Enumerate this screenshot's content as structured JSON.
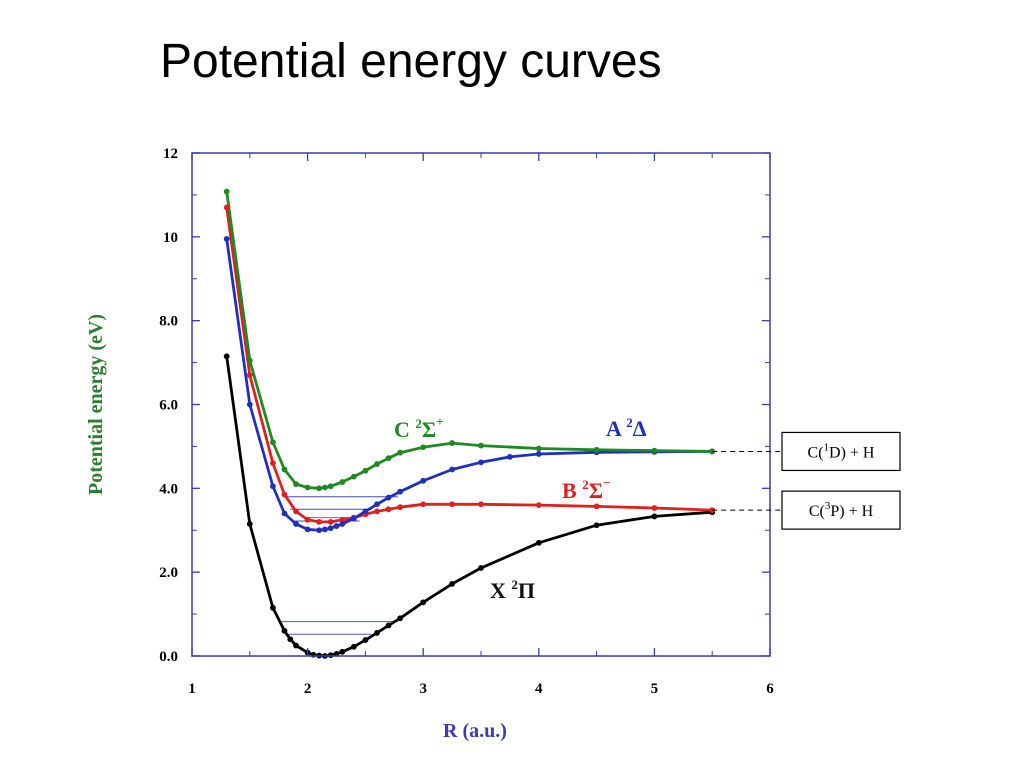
{
  "slide": {
    "title": "Potential energy curves"
  },
  "chart_data": {
    "type": "line",
    "title": "",
    "xlabel": "R (a.u.)",
    "ylabel": "Potential energy (eV)",
    "xlim": [
      1,
      6
    ],
    "ylim": [
      0,
      12
    ],
    "x_ticks": [
      "1",
      "2",
      "3",
      "4",
      "5",
      "6"
    ],
    "y_ticks": [
      "0.0",
      "2.0",
      "4.0",
      "6.0",
      "8.0",
      "10",
      "12"
    ],
    "grid": false,
    "colors": {
      "axis": "#3a3ab8",
      "xlabel": "#3a3ab8",
      "ylabel": "#2e7d32",
      "asymptote": "#000000"
    },
    "series": [
      {
        "name": "X ²Π",
        "letter": "X",
        "sup": "2",
        "symbol": "Π",
        "sign": "",
        "color": "#000000",
        "x": [
          1.3,
          1.5,
          1.7,
          1.8,
          1.85,
          1.9,
          2.0,
          2.05,
          2.1,
          2.15,
          2.2,
          2.25,
          2.3,
          2.4,
          2.5,
          2.6,
          2.7,
          2.8,
          3.0,
          3.25,
          3.5,
          4.0,
          4.5,
          5.0,
          5.5
        ],
        "y": [
          7.15,
          3.15,
          1.15,
          0.6,
          0.4,
          0.25,
          0.08,
          0.03,
          0.01,
          0.0,
          0.02,
          0.05,
          0.1,
          0.22,
          0.38,
          0.55,
          0.73,
          0.9,
          1.28,
          1.72,
          2.1,
          2.7,
          3.12,
          3.33,
          3.43
        ],
        "vib_levels": [
          {
            "y": 0.52,
            "x1": 1.83,
            "x2": 2.55
          },
          {
            "y": 0.82,
            "x1": 1.75,
            "x2": 2.78
          }
        ]
      },
      {
        "name": "B ²Σ⁻",
        "letter": "B",
        "sup": "2",
        "symbol": "Σ",
        "sign": "−",
        "color": "#e02020",
        "x": [
          1.3,
          1.5,
          1.7,
          1.8,
          1.9,
          2.0,
          2.1,
          2.2,
          2.3,
          2.4,
          2.5,
          2.6,
          2.7,
          2.8,
          3.0,
          3.25,
          3.5,
          4.0,
          4.5,
          5.0,
          5.5
        ],
        "y": [
          10.7,
          6.7,
          4.6,
          3.85,
          3.45,
          3.25,
          3.2,
          3.2,
          3.25,
          3.3,
          3.38,
          3.45,
          3.5,
          3.55,
          3.62,
          3.62,
          3.62,
          3.6,
          3.57,
          3.53,
          3.48
        ],
        "vib_levels": [
          {
            "y": 3.3,
            "x1": 2.0,
            "x2": 2.4
          }
        ]
      },
      {
        "name": "A ²Δ",
        "letter": "A",
        "sup": "2",
        "symbol": "Δ",
        "sign": "",
        "color": "#1f2fbf",
        "x": [
          1.3,
          1.5,
          1.7,
          1.8,
          1.9,
          2.0,
          2.1,
          2.15,
          2.2,
          2.25,
          2.3,
          2.4,
          2.5,
          2.6,
          2.7,
          2.8,
          3.0,
          3.25,
          3.5,
          3.75,
          4.0,
          4.5,
          5.0,
          5.5
        ],
        "y": [
          9.95,
          6.0,
          4.05,
          3.4,
          3.15,
          3.02,
          3.0,
          3.02,
          3.05,
          3.1,
          3.15,
          3.28,
          3.45,
          3.62,
          3.78,
          3.92,
          4.18,
          4.45,
          4.62,
          4.75,
          4.82,
          4.86,
          4.87,
          4.88
        ],
        "vib_levels": [
          {
            "y": 3.22,
            "x1": 1.88,
            "x2": 2.45
          },
          {
            "y": 3.5,
            "x1": 1.85,
            "x2": 2.55
          },
          {
            "y": 3.8,
            "x1": 1.8,
            "x2": 2.78
          }
        ]
      },
      {
        "name": "C ²Σ⁺",
        "letter": "C",
        "sup": "2",
        "symbol": "Σ",
        "sign": "+",
        "color": "#1f8a1f",
        "x": [
          1.3,
          1.5,
          1.7,
          1.8,
          1.9,
          2.0,
          2.1,
          2.15,
          2.2,
          2.3,
          2.4,
          2.5,
          2.6,
          2.7,
          2.8,
          3.0,
          3.25,
          3.5,
          4.0,
          4.5,
          5.0,
          5.5
        ],
        "y": [
          11.08,
          7.05,
          5.1,
          4.45,
          4.1,
          4.02,
          4.0,
          4.02,
          4.05,
          4.15,
          4.28,
          4.42,
          4.58,
          4.72,
          4.85,
          4.98,
          5.08,
          5.02,
          4.95,
          4.92,
          4.9,
          4.88
        ],
        "vib_levels": []
      }
    ],
    "asymptotes": [
      {
        "label": "C(¹D) + H",
        "text": "C(",
        "sup": "1",
        "rest": "D) + H",
        "y": 4.88
      },
      {
        "label": "C(³P) + H",
        "text": "C(",
        "sup": "3",
        "rest": "P) + H",
        "y": 3.48
      }
    ]
  }
}
